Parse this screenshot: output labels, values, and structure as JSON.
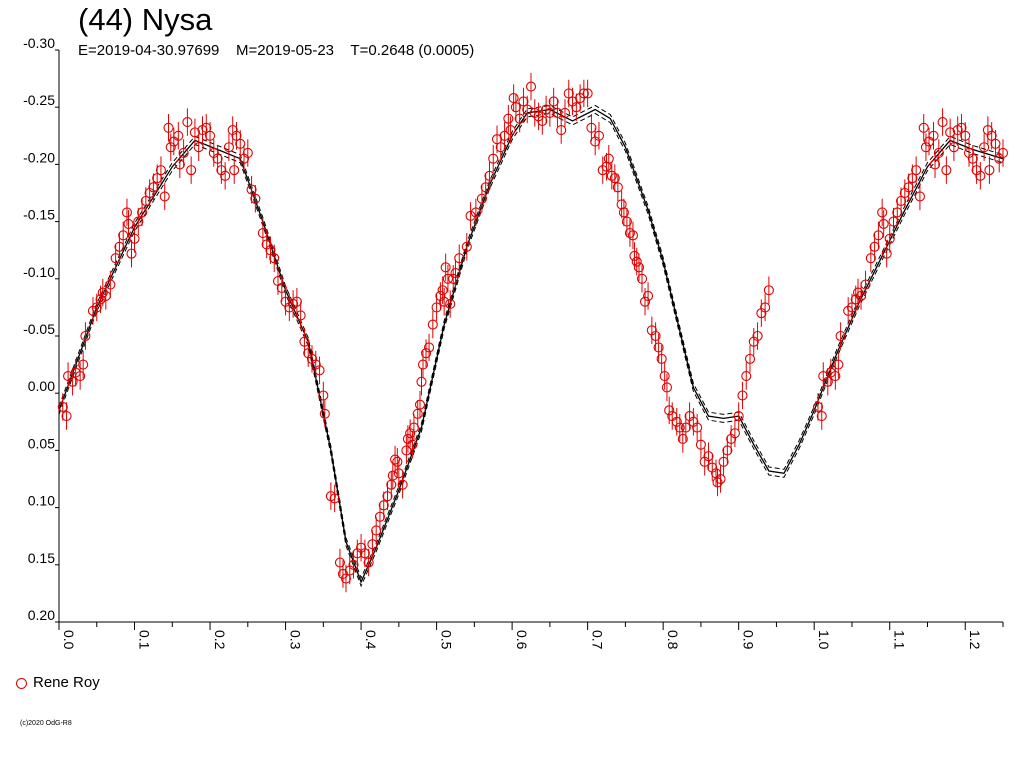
{
  "title": "(44) Nysa",
  "subtitle": "E=2019-04-30.97699    M=2019-05-23    T=0.2648 (0.0005)",
  "legend": {
    "observer": "Rene Roy",
    "marker_color": "#e00000"
  },
  "copyright": "(c)2020 OdG-R8",
  "chart_data": {
    "type": "scatter",
    "title": "(44) Nysa",
    "xlabel": "",
    "ylabel": "",
    "xlim": [
      0.0,
      1.25
    ],
    "ylim": [
      -0.3,
      0.2
    ],
    "y_inverted": true,
    "x_ticks": [
      "0.0",
      "0.1",
      "0.2",
      "0.3",
      "0.4",
      "0.5",
      "0.6",
      "0.7",
      "0.8",
      "0.9",
      "1.0",
      "1.1",
      "1.2"
    ],
    "y_ticks": [
      "-0.30",
      "-0.25",
      "-0.20",
      "-0.15",
      "-0.10",
      "-0.05",
      "0.00",
      "0.05",
      "0.10",
      "0.15",
      "0.20"
    ],
    "grid": false,
    "legend_position": "bottom-left",
    "point_color": "#e00000",
    "model_color": "#000000",
    "error_bar": 0.012,
    "series": [
      {
        "name": "Rene Roy",
        "points": [
          [
            0.005,
            0.012
          ],
          [
            0.01,
            0.02
          ],
          [
            0.012,
            -0.015
          ],
          [
            0.018,
            -0.01
          ],
          [
            0.022,
            -0.018
          ],
          [
            0.028,
            -0.015
          ],
          [
            0.032,
            -0.025
          ],
          [
            0.035,
            -0.05
          ],
          [
            0.045,
            -0.072
          ],
          [
            0.05,
            -0.075
          ],
          [
            0.055,
            -0.082
          ],
          [
            0.058,
            -0.088
          ],
          [
            0.062,
            -0.085
          ],
          [
            0.068,
            -0.095
          ],
          [
            0.075,
            -0.118
          ],
          [
            0.08,
            -0.128
          ],
          [
            0.085,
            -0.138
          ],
          [
            0.09,
            -0.158
          ],
          [
            0.092,
            -0.148
          ],
          [
            0.096,
            -0.122
          ],
          [
            0.1,
            -0.135
          ],
          [
            0.105,
            -0.15
          ],
          [
            0.11,
            -0.158
          ],
          [
            0.115,
            -0.168
          ],
          [
            0.12,
            -0.175
          ],
          [
            0.125,
            -0.18
          ],
          [
            0.13,
            -0.188
          ],
          [
            0.135,
            -0.195
          ],
          [
            0.14,
            -0.172
          ],
          [
            0.145,
            -0.232
          ],
          [
            0.148,
            -0.215
          ],
          [
            0.152,
            -0.22
          ],
          [
            0.158,
            -0.225
          ],
          [
            0.16,
            -0.2
          ],
          [
            0.165,
            -0.21
          ],
          [
            0.17,
            -0.237
          ],
          [
            0.175,
            -0.195
          ],
          [
            0.18,
            -0.228
          ],
          [
            0.185,
            -0.215
          ],
          [
            0.19,
            -0.23
          ],
          [
            0.195,
            -0.232
          ],
          [
            0.2,
            -0.225
          ],
          [
            0.205,
            -0.21
          ],
          [
            0.21,
            -0.205
          ],
          [
            0.215,
            -0.195
          ],
          [
            0.22,
            -0.19
          ],
          [
            0.225,
            -0.215
          ],
          [
            0.23,
            -0.23
          ],
          [
            0.232,
            -0.195
          ],
          [
            0.235,
            -0.225
          ],
          [
            0.24,
            -0.218
          ],
          [
            0.245,
            -0.205
          ],
          [
            0.25,
            -0.21
          ],
          [
            0.255,
            -0.178
          ],
          [
            0.26,
            -0.17
          ],
          [
            0.27,
            -0.14
          ],
          [
            0.275,
            -0.13
          ],
          [
            0.28,
            -0.125
          ],
          [
            0.285,
            -0.118
          ],
          [
            0.29,
            -0.098
          ],
          [
            0.295,
            -0.092
          ],
          [
            0.3,
            -0.08
          ],
          [
            0.305,
            -0.075
          ],
          [
            0.31,
            -0.078
          ],
          [
            0.315,
            -0.08
          ],
          [
            0.32,
            -0.068
          ],
          [
            0.325,
            -0.045
          ],
          [
            0.33,
            -0.035
          ],
          [
            0.335,
            -0.03
          ],
          [
            0.34,
            -0.025
          ],
          [
            0.345,
            -0.02
          ],
          [
            0.35,
            0.002
          ],
          [
            0.352,
            0.018
          ],
          [
            0.36,
            0.09
          ],
          [
            0.365,
            0.092
          ],
          [
            0.372,
            0.148
          ],
          [
            0.376,
            0.158
          ],
          [
            0.38,
            0.162
          ],
          [
            0.385,
            0.155
          ],
          [
            0.39,
            0.15
          ],
          [
            0.395,
            0.14
          ],
          [
            0.4,
            0.135
          ],
          [
            0.405,
            0.14
          ],
          [
            0.41,
            0.148
          ],
          [
            0.415,
            0.132
          ],
          [
            0.42,
            0.12
          ],
          [
            0.425,
            0.108
          ],
          [
            0.43,
            0.098
          ],
          [
            0.435,
            0.09
          ],
          [
            0.44,
            0.08
          ],
          [
            0.442,
            0.072
          ],
          [
            0.445,
            0.058
          ],
          [
            0.448,
            0.06
          ],
          [
            0.45,
            0.07
          ],
          [
            0.455,
            0.08
          ],
          [
            0.46,
            0.05
          ],
          [
            0.462,
            0.04
          ],
          [
            0.465,
            0.035
          ],
          [
            0.468,
            0.045
          ],
          [
            0.47,
            0.03
          ],
          [
            0.475,
            0.018
          ],
          [
            0.478,
            0.01
          ],
          [
            0.48,
            -0.01
          ],
          [
            0.482,
            -0.025
          ],
          [
            0.486,
            -0.035
          ],
          [
            0.49,
            -0.04
          ],
          [
            0.495,
            -0.06
          ],
          [
            0.5,
            -0.075
          ],
          [
            0.505,
            -0.085
          ],
          [
            0.508,
            -0.09
          ],
          [
            0.51,
            -0.08
          ],
          [
            0.512,
            -0.11
          ],
          [
            0.515,
            -0.1
          ],
          [
            0.518,
            -0.078
          ],
          [
            0.522,
            -0.1
          ],
          [
            0.525,
            -0.105
          ],
          [
            0.53,
            -0.118
          ],
          [
            0.54,
            -0.128
          ],
          [
            0.545,
            -0.155
          ],
          [
            0.552,
            -0.158
          ],
          [
            0.56,
            -0.17
          ],
          [
            0.565,
            -0.18
          ],
          [
            0.57,
            -0.19
          ],
          [
            0.575,
            -0.205
          ],
          [
            0.58,
            -0.222
          ],
          [
            0.585,
            -0.215
          ],
          [
            0.59,
            -0.225
          ],
          [
            0.595,
            -0.24
          ],
          [
            0.598,
            -0.23
          ],
          [
            0.602,
            -0.258
          ],
          [
            0.605,
            -0.25
          ],
          [
            0.61,
            -0.24
          ],
          [
            0.615,
            -0.255
          ],
          [
            0.62,
            -0.248
          ],
          [
            0.625,
            -0.268
          ],
          [
            0.63,
            -0.245
          ],
          [
            0.635,
            -0.242
          ],
          [
            0.64,
            -0.238
          ],
          [
            0.645,
            -0.248
          ],
          [
            0.65,
            -0.245
          ],
          [
            0.655,
            -0.255
          ],
          [
            0.66,
            -0.245
          ],
          [
            0.665,
            -0.23
          ],
          [
            0.67,
            -0.245
          ],
          [
            0.675,
            -0.262
          ],
          [
            0.68,
            -0.255
          ],
          [
            0.685,
            -0.25
          ],
          [
            0.69,
            -0.258
          ],
          [
            0.695,
            -0.262
          ],
          [
            0.7,
            -0.262
          ],
          [
            0.705,
            -0.232
          ],
          [
            0.71,
            -0.22
          ],
          [
            0.715,
            -0.225
          ],
          [
            0.72,
            -0.195
          ],
          [
            0.725,
            -0.198
          ],
          [
            0.728,
            -0.205
          ],
          [
            0.732,
            -0.19
          ],
          [
            0.736,
            -0.188
          ],
          [
            0.74,
            -0.18
          ],
          [
            0.745,
            -0.165
          ],
          [
            0.748,
            -0.158
          ],
          [
            0.752,
            -0.15
          ],
          [
            0.756,
            -0.14
          ],
          [
            0.76,
            -0.138
          ],
          [
            0.762,
            -0.12
          ],
          [
            0.765,
            -0.115
          ],
          [
            0.768,
            -0.11
          ],
          [
            0.772,
            -0.1
          ],
          [
            0.776,
            -0.08
          ],
          [
            0.78,
            -0.085
          ],
          [
            0.785,
            -0.055
          ],
          [
            0.79,
            -0.05
          ],
          [
            0.794,
            -0.04
          ],
          [
            0.798,
            -0.03
          ],
          [
            0.802,
            -0.015
          ],
          [
            0.805,
            -0.005
          ],
          [
            0.808,
            0.015
          ],
          [
            0.812,
            0.02
          ],
          [
            0.818,
            0.025
          ],
          [
            0.822,
            0.03
          ],
          [
            0.826,
            0.04
          ],
          [
            0.83,
            0.03
          ],
          [
            0.835,
            0.02
          ],
          [
            0.84,
            0.025
          ],
          [
            0.845,
            0.03
          ],
          [
            0.85,
            0.045
          ],
          [
            0.855,
            0.06
          ],
          [
            0.86,
            0.055
          ],
          [
            0.865,
            0.065
          ],
          [
            0.87,
            0.07
          ],
          [
            0.872,
            0.078
          ],
          [
            0.876,
            0.075
          ],
          [
            0.88,
            0.06
          ],
          [
            0.885,
            0.05
          ],
          [
            0.89,
            0.04
          ],
          [
            0.895,
            0.035
          ],
          [
            0.9,
            0.02
          ],
          [
            0.905,
            0.002
          ],
          [
            0.91,
            -0.015
          ],
          [
            0.915,
            -0.03
          ],
          [
            0.92,
            -0.045
          ],
          [
            0.925,
            -0.05
          ],
          [
            0.93,
            -0.07
          ],
          [
            0.935,
            -0.075
          ],
          [
            0.94,
            -0.09
          ]
        ]
      }
    ],
    "model_curves": [
      {
        "name": "fit",
        "style": "solid",
        "points": [
          [
            0.0,
            0.015
          ],
          [
            0.05,
            -0.075
          ],
          [
            0.1,
            -0.145
          ],
          [
            0.15,
            -0.198
          ],
          [
            0.18,
            -0.221
          ],
          [
            0.21,
            -0.213
          ],
          [
            0.24,
            -0.205
          ],
          [
            0.27,
            -0.15
          ],
          [
            0.3,
            -0.09
          ],
          [
            0.33,
            -0.045
          ],
          [
            0.36,
            0.05
          ],
          [
            0.38,
            0.13
          ],
          [
            0.4,
            0.165
          ],
          [
            0.42,
            0.135
          ],
          [
            0.45,
            0.085
          ],
          [
            0.48,
            0.03
          ],
          [
            0.51,
            -0.06
          ],
          [
            0.54,
            -0.128
          ],
          [
            0.57,
            -0.182
          ],
          [
            0.6,
            -0.225
          ],
          [
            0.62,
            -0.245
          ],
          [
            0.65,
            -0.248
          ],
          [
            0.68,
            -0.238
          ],
          [
            0.71,
            -0.248
          ],
          [
            0.73,
            -0.24
          ],
          [
            0.75,
            -0.215
          ],
          [
            0.78,
            -0.16
          ],
          [
            0.8,
            -0.115
          ],
          [
            0.82,
            -0.06
          ],
          [
            0.84,
            -0.005
          ],
          [
            0.86,
            0.02
          ],
          [
            0.88,
            0.022
          ],
          [
            0.9,
            0.02
          ],
          [
            0.92,
            0.045
          ],
          [
            0.94,
            0.068
          ],
          [
            0.96,
            0.07
          ],
          [
            0.98,
            0.045
          ],
          [
            1.0,
            0.015
          ],
          [
            1.03,
            -0.035
          ],
          [
            1.06,
            -0.08
          ],
          [
            1.09,
            -0.12
          ],
          [
            1.12,
            -0.16
          ],
          [
            1.15,
            -0.198
          ],
          [
            1.18,
            -0.221
          ],
          [
            1.21,
            -0.213
          ],
          [
            1.25,
            -0.205
          ]
        ]
      }
    ]
  }
}
